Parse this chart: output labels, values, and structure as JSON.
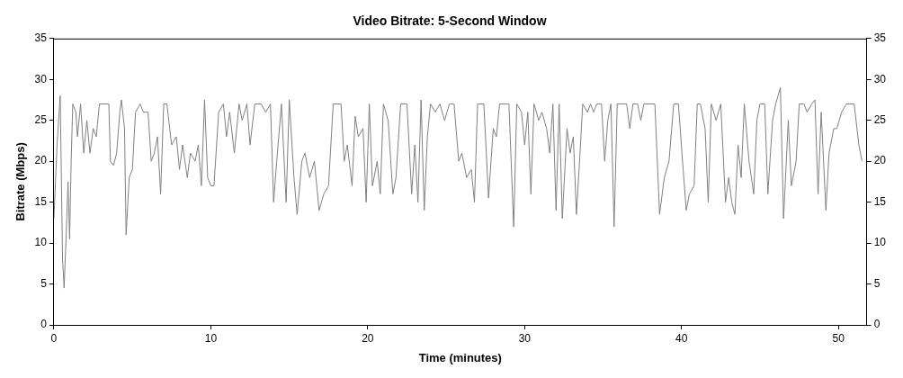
{
  "chart_data": {
    "type": "line",
    "title": "Video Bitrate: 5-Second Window",
    "xlabel": "Time (minutes)",
    "ylabel": "Bitrate (Mbps)",
    "x": [
      0,
      0.2,
      0.4,
      0.55,
      0.65,
      0.8,
      0.9,
      1.0,
      1.1,
      1.2,
      1.4,
      1.5,
      1.7,
      1.9,
      2.1,
      2.3,
      2.5,
      2.7,
      2.9,
      3.1,
      3.5,
      3.6,
      3.8,
      4.0,
      4.2,
      4.3,
      4.5,
      4.6,
      4.8,
      5.0,
      5.2,
      5.5,
      5.7,
      6.0,
      6.2,
      6.4,
      6.6,
      6.8,
      7.0,
      7.2,
      7.5,
      7.8,
      8.0,
      8.2,
      8.5,
      8.7,
      9.0,
      9.2,
      9.4,
      9.6,
      9.8,
      10.0,
      10.2,
      10.5,
      10.8,
      11.0,
      11.2,
      11.5,
      11.8,
      12.0,
      12.3,
      12.5,
      12.8,
      13.2,
      13.5,
      13.8,
      14.0,
      14.2,
      14.5,
      14.8,
      15.0,
      15.3,
      15.5,
      15.8,
      16.0,
      16.3,
      16.6,
      16.9,
      17.2,
      17.5,
      17.8,
      18.3,
      18.5,
      18.7,
      19.0,
      19.2,
      19.4,
      19.7,
      19.9,
      20.1,
      20.3,
      20.6,
      20.8,
      21.0,
      21.3,
      21.6,
      21.8,
      22.1,
      22.5,
      22.8,
      23.0,
      23.2,
      23.4,
      23.6,
      23.8,
      24.0,
      24.3,
      24.6,
      24.9,
      25.2,
      25.5,
      25.8,
      26.0,
      26.3,
      26.6,
      26.8,
      27.0,
      27.4,
      27.7,
      28.0,
      28.2,
      28.4,
      28.8,
      29.0,
      29.3,
      29.5,
      29.8,
      30.0,
      30.2,
      30.4,
      30.6,
      30.9,
      31.1,
      31.4,
      31.6,
      31.8,
      32.0,
      32.2,
      32.4,
      32.7,
      32.9,
      33.1,
      33.3,
      33.5,
      33.7,
      34.0,
      34.2,
      34.4,
      34.6,
      34.9,
      35.1,
      35.3,
      35.5,
      35.7,
      35.9,
      36.3,
      36.5,
      36.7,
      36.9,
      37.2,
      37.4,
      37.6,
      38.0,
      38.3,
      38.6,
      38.9,
      39.2,
      39.5,
      39.8,
      40.1,
      40.3,
      40.5,
      40.8,
      41.0,
      41.2,
      41.5,
      41.7,
      41.9,
      42.2,
      42.5,
      42.8,
      43.0,
      43.2,
      43.4,
      43.6,
      43.8,
      44.0,
      44.3,
      44.6,
      44.8,
      45.0,
      45.3,
      45.5,
      45.8,
      46.0,
      46.3,
      46.5,
      46.8,
      47.0,
      47.3,
      47.5,
      47.8,
      48.0,
      48.3,
      48.5,
      48.7,
      48.9,
      49.2,
      49.4,
      49.7,
      49.9,
      50.2,
      50.5,
      51.0,
      51.3,
      51.5
    ],
    "series": [
      {
        "color": "#808080",
        "values": [
          13,
          22,
          28,
          8,
          4.5,
          12,
          17.5,
          10.5,
          20,
          27,
          26,
          23,
          27,
          21,
          25,
          21,
          24,
          23,
          27,
          27,
          27,
          20,
          19.5,
          21,
          26,
          27.5,
          24,
          11,
          18,
          19,
          26,
          27,
          26,
          26,
          20,
          21,
          23,
          16,
          27,
          27,
          22,
          23,
          19,
          22,
          18,
          21,
          20,
          22,
          17,
          27.5,
          18,
          17,
          17,
          26,
          27,
          23,
          26,
          21,
          27,
          25,
          27,
          22,
          27,
          27,
          26,
          27,
          15,
          20,
          27,
          15,
          27.5,
          18,
          13.5,
          20,
          21,
          18,
          20,
          14,
          16,
          17,
          27,
          27,
          20,
          22,
          17,
          25.5,
          23,
          24,
          15,
          27,
          17,
          20,
          16,
          27,
          25,
          16,
          18,
          27,
          27,
          16,
          22,
          15,
          27.5,
          14,
          23,
          27,
          26,
          27,
          25,
          27,
          27,
          20,
          21,
          18,
          19,
          15,
          27,
          27,
          15.5,
          24,
          23,
          27,
          27,
          27,
          12,
          27,
          26,
          22,
          26,
          16,
          27,
          25,
          26,
          24,
          21,
          27,
          14,
          27,
          13,
          24,
          21,
          23,
          13.5,
          20,
          27,
          26,
          27,
          26,
          27,
          27,
          20,
          25,
          27,
          12,
          27,
          27,
          27,
          24,
          27,
          27,
          25,
          27,
          27,
          27,
          13.5,
          18,
          20,
          27,
          27,
          19,
          14,
          16,
          17,
          27,
          27,
          24,
          15,
          27,
          25,
          27,
          15,
          18,
          15,
          13.5,
          22,
          18,
          27,
          20,
          16,
          25,
          27,
          27,
          16,
          25,
          27,
          29,
          13,
          25,
          17,
          20,
          27,
          27,
          26,
          27,
          27.5,
          16,
          26,
          14,
          21,
          24,
          24,
          26,
          27,
          27,
          22,
          20
        ]
      }
    ],
    "xlim": [
      0,
      51.8
    ],
    "xticks": [
      0,
      10,
      20,
      30,
      40,
      50
    ],
    "ylim": [
      0,
      35
    ],
    "yticks": [
      0,
      5,
      10,
      15,
      20,
      25,
      30,
      35
    ],
    "y2lim": [
      0,
      35
    ],
    "y2ticks": [
      0,
      5,
      10,
      15,
      20,
      25,
      30,
      35
    ],
    "legend": false,
    "marker": "none",
    "line_style": "solid"
  }
}
